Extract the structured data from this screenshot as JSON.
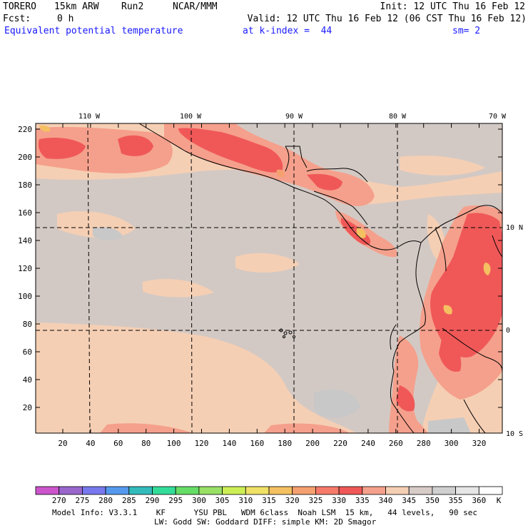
{
  "header": {
    "model": "TORERO",
    "resolution": "15km ARW",
    "run": "Run2",
    "org": "NCAR/MMM",
    "init": "Init: 12 UTC Thu 16 Feb 12",
    "fcst_label": "Fcst:",
    "fcst_value": "0 h",
    "valid": "Valid: 12 UTC Thu 16 Feb 12 (06 CST Thu 16 Feb 12)",
    "field": "Equivalent potential temperature",
    "level": "at k-index =  44",
    "smoothing": "sm= 2"
  },
  "map": {
    "top_lon_labels": [
      "110 W",
      "100 W",
      "90 W",
      "80 W",
      "70 W"
    ],
    "right_lat_labels": [
      "10 N",
      "0",
      "10 S"
    ],
    "y_ticks": [
      "220",
      "200",
      "180",
      "160",
      "140",
      "120",
      "100",
      "80",
      "60",
      "40",
      "20"
    ],
    "x_ticks": [
      "20",
      "40",
      "60",
      "80",
      "100",
      "120",
      "140",
      "160",
      "180",
      "200",
      "220",
      "240",
      "260",
      "280",
      "300",
      "320"
    ]
  },
  "colorbar": {
    "levels": [
      "270",
      "275",
      "280",
      "285",
      "290",
      "295",
      "300",
      "305",
      "310",
      "315",
      "320",
      "325",
      "330",
      "335",
      "340",
      "345",
      "350",
      "355",
      "360"
    ],
    "unit": "K",
    "colors": [
      "#cc55cc",
      "#9966cc",
      "#7777ee",
      "#5599ee",
      "#33bbbb",
      "#33dd99",
      "#66dd66",
      "#99e066",
      "#ccee55",
      "#f0e066",
      "#f5c061",
      "#f5a070",
      "#f57a6a",
      "#f05858",
      "#f5a08c",
      "#f5cfb4",
      "#d8ccc8",
      "#d0d0d0",
      "#e6e6e6",
      "#ffffff"
    ]
  },
  "footer": {
    "line1": "Model Info: V3.3.1    KF      YSU PBL   WDM 6class  Noah LSM  15 km,   44 levels,   90 sec",
    "line2": "LW: Godd SW: Goddard DIFF: simple KM: 2D Smagor"
  },
  "legend_colors": {
    "background_peach": "#f5cfb4",
    "gray_band": "#d0c8c5",
    "salmon": "#f5a08c",
    "red": "#f05858"
  }
}
